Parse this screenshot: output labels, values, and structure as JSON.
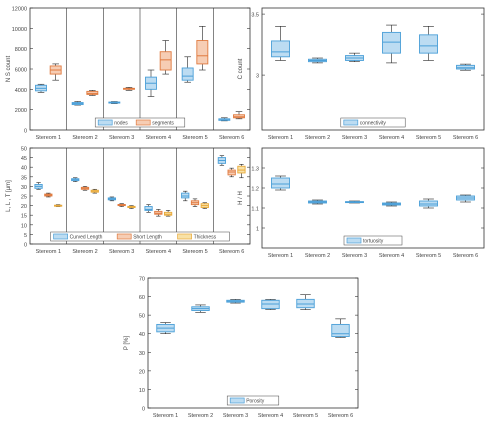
{
  "chart_data": [
    {
      "type": "boxplot",
      "ylabel": "N S count",
      "ylim": [
        0,
        12000
      ],
      "yticks": [
        0,
        2000,
        4000,
        6000,
        8000,
        10000,
        12000
      ],
      "ytick_labels": [
        "0",
        "2000",
        "4000",
        "6000",
        "8000",
        "10000",
        "12000"
      ],
      "categories": [
        "Stereom 1",
        "Stereom 2",
        "Stereom 3",
        "Stereom 4",
        "Stereom 5",
        "Stereom 6"
      ],
      "group_separators": true,
      "legend": {
        "placement": "bottom-center",
        "entries": [
          "nodes",
          "segments"
        ]
      },
      "series": [
        {
          "name": "nodes",
          "color": "#4a9fd8",
          "fill": "#bcdcf2",
          "values": [
            {
              "whislo": 3700,
              "q1": 3850,
              "med": 4100,
              "q3": 4400,
              "whishi": 4500
            },
            {
              "whislo": 2450,
              "q1": 2500,
              "med": 2600,
              "q3": 2700,
              "whishi": 2800
            },
            {
              "whislo": 2600,
              "q1": 2650,
              "med": 2700,
              "q3": 2750,
              "whishi": 2800
            },
            {
              "whislo": 3300,
              "q1": 4000,
              "med": 4600,
              "q3": 5200,
              "whishi": 5900
            },
            {
              "whislo": 4700,
              "q1": 4900,
              "med": 5300,
              "q3": 6100,
              "whishi": 7200
            },
            {
              "whislo": 900,
              "q1": 950,
              "med": 1000,
              "q3": 1100,
              "whishi": 1200
            }
          ]
        },
        {
          "name": "segments",
          "color": "#e07a3f",
          "fill": "#f6cdb4",
          "values": [
            {
              "whislo": 4900,
              "q1": 5500,
              "med": 5900,
              "q3": 6300,
              "whishi": 6500
            },
            {
              "whislo": 3400,
              "q1": 3500,
              "med": 3600,
              "q3": 3800,
              "whishi": 3900
            },
            {
              "whislo": 3900,
              "q1": 4000,
              "med": 4050,
              "q3": 4100,
              "whishi": 4200
            },
            {
              "whislo": 5500,
              "q1": 5900,
              "med": 6900,
              "q3": 7700,
              "whishi": 8800
            },
            {
              "whislo": 5900,
              "q1": 6500,
              "med": 7300,
              "q3": 8800,
              "whishi": 10200
            },
            {
              "whislo": 1100,
              "q1": 1200,
              "med": 1300,
              "q3": 1500,
              "whishi": 1800
            }
          ]
        }
      ]
    },
    {
      "type": "boxplot",
      "ylabel": "C count",
      "ylim": [
        2.55,
        3.55
      ],
      "yticks": [
        3.0,
        3.5
      ],
      "ytick_labels": [
        "3",
        "3.5"
      ],
      "categories": [
        "Stereom 1",
        "Stereom 2",
        "Stereom 3",
        "Stereom 4",
        "Stereom 5",
        "Stereom 6"
      ],
      "legend": {
        "placement": "bottom-center",
        "entries": [
          "connectivity"
        ]
      },
      "series": [
        {
          "name": "connectivity",
          "color": "#4a9fd8",
          "fill": "#bcdcf2",
          "values": [
            {
              "whislo": 3.12,
              "q1": 3.15,
              "med": 3.19,
              "q3": 3.28,
              "whishi": 3.4
            },
            {
              "whislo": 3.1,
              "q1": 3.11,
              "med": 3.12,
              "q3": 3.13,
              "whishi": 3.14
            },
            {
              "whislo": 3.11,
              "q1": 3.12,
              "med": 3.14,
              "q3": 3.16,
              "whishi": 3.18
            },
            {
              "whislo": 3.1,
              "q1": 3.18,
              "med": 3.27,
              "q3": 3.35,
              "whishi": 3.41
            },
            {
              "whislo": 3.12,
              "q1": 3.18,
              "med": 3.24,
              "q3": 3.33,
              "whishi": 3.4
            },
            {
              "whislo": 3.04,
              "q1": 3.05,
              "med": 3.06,
              "q3": 3.08,
              "whishi": 3.09
            }
          ]
        }
      ]
    },
    {
      "type": "boxplot",
      "ylabel": "L, L , T [μm]",
      "ylim": [
        0,
        50
      ],
      "yticks": [
        0,
        5,
        10,
        15,
        20,
        25,
        30,
        35,
        40,
        45,
        50
      ],
      "ytick_labels": [
        "0",
        "5",
        "10",
        "15",
        "20",
        "25",
        "30",
        "35",
        "40",
        "45",
        "50"
      ],
      "categories": [
        "Stereom 1",
        "Stereom 2",
        "Stereom 3",
        "Stereom 4",
        "Stereom 5",
        "Stereom 6"
      ],
      "group_separators": true,
      "legend": {
        "placement": "bottom-center",
        "entries": [
          "Curved Length",
          "Short Length",
          "Thickness"
        ]
      },
      "series": [
        {
          "name": "Curved Length",
          "color": "#4a9fd8",
          "fill": "#bcdcf2",
          "values": [
            {
              "whislo": 28.5,
              "q1": 29,
              "med": 30,
              "q3": 31,
              "whishi": 32
            },
            {
              "whislo": 32.5,
              "q1": 33,
              "med": 33.5,
              "q3": 34,
              "whishi": 34.5
            },
            {
              "whislo": 22.5,
              "q1": 23,
              "med": 23.5,
              "q3": 24,
              "whishi": 24.5
            },
            {
              "whislo": 16.5,
              "q1": 17.5,
              "med": 18,
              "q3": 19.5,
              "whishi": 20.5
            },
            {
              "whislo": 22.5,
              "q1": 24,
              "med": 25,
              "q3": 26.5,
              "whishi": 27.5
            },
            {
              "whislo": 41,
              "q1": 42,
              "med": 43.5,
              "q3": 45,
              "whishi": 46
            }
          ]
        },
        {
          "name": "Short Length",
          "color": "#e07a3f",
          "fill": "#f6cdb4",
          "values": [
            {
              "whislo": 24.5,
              "q1": 25,
              "med": 25.5,
              "q3": 26,
              "whishi": 26.5
            },
            {
              "whislo": 28,
              "q1": 28.5,
              "med": 29,
              "q3": 29.5,
              "whishi": 30
            },
            {
              "whislo": 19.5,
              "q1": 20,
              "med": 20.3,
              "q3": 20.6,
              "whishi": 21
            },
            {
              "whislo": 14.5,
              "q1": 15.5,
              "med": 16,
              "q3": 17,
              "whishi": 18
            },
            {
              "whislo": 19.5,
              "q1": 20.5,
              "med": 21.5,
              "q3": 22.5,
              "whishi": 23.5
            },
            {
              "whislo": 35,
              "q1": 36,
              "med": 37.5,
              "q3": 38.5,
              "whishi": 39.5
            }
          ]
        },
        {
          "name": "Thickness",
          "color": "#e8a93a",
          "fill": "#f8e1a6",
          "values": [
            {
              "whislo": 19.5,
              "q1": 19.8,
              "med": 20,
              "q3": 20.2,
              "whishi": 20.5
            },
            {
              "whislo": 26.5,
              "q1": 27,
              "med": 27.5,
              "q3": 28,
              "whishi": 28.5
            },
            {
              "whislo": 18.5,
              "q1": 19,
              "med": 19.3,
              "q3": 19.6,
              "whishi": 20
            },
            {
              "whislo": 14.5,
              "q1": 15,
              "med": 15.5,
              "q3": 16.5,
              "whishi": 17.5
            },
            {
              "whislo": 18.5,
              "q1": 19,
              "med": 20,
              "q3": 21,
              "whishi": 21.5
            },
            {
              "whislo": 34.5,
              "q1": 37,
              "med": 38.5,
              "q3": 40.5,
              "whishi": 41.5
            }
          ]
        }
      ]
    },
    {
      "type": "boxplot",
      "ylabel": "H / H",
      "ylim": [
        0.9,
        1.4
      ],
      "yticks": [
        1.0,
        1.1,
        1.2,
        1.3
      ],
      "ytick_labels": [
        "1",
        "1.1",
        "1.2",
        "1.3"
      ],
      "categories": [
        "Stereom 1",
        "Stereom 2",
        "Stereom 3",
        "Stereom 4",
        "Stereom 5",
        "Stereom 6"
      ],
      "legend": {
        "placement": "bottom-center",
        "entries": [
          "tortuosity"
        ]
      },
      "series": [
        {
          "name": "tortuosity",
          "color": "#4a9fd8",
          "fill": "#bcdcf2",
          "values": [
            {
              "whislo": 1.19,
              "q1": 1.2,
              "med": 1.22,
              "q3": 1.25,
              "whishi": 1.26
            },
            {
              "whislo": 1.12,
              "q1": 1.125,
              "med": 1.13,
              "q3": 1.135,
              "whishi": 1.14
            },
            {
              "whislo": 1.125,
              "q1": 1.128,
              "med": 1.13,
              "q3": 1.132,
              "whishi": 1.135
            },
            {
              "whislo": 1.11,
              "q1": 1.115,
              "med": 1.12,
              "q3": 1.125,
              "whishi": 1.13
            },
            {
              "whislo": 1.1,
              "q1": 1.11,
              "med": 1.12,
              "q3": 1.135,
              "whishi": 1.145
            },
            {
              "whislo": 1.13,
              "q1": 1.14,
              "med": 1.15,
              "q3": 1.16,
              "whishi": 1.165
            }
          ]
        }
      ]
    },
    {
      "type": "boxplot",
      "ylabel": "P [%]",
      "ylim": [
        0,
        70
      ],
      "yticks": [
        0,
        10,
        20,
        30,
        40,
        50,
        60,
        70
      ],
      "ytick_labels": [
        "0",
        "10",
        "20",
        "30",
        "40",
        "50",
        "60",
        "70"
      ],
      "categories": [
        "Stereom 1",
        "Stereom 2",
        "Stereom 3",
        "Stereom 4",
        "Stereom 5",
        "Stereom 6"
      ],
      "legend": {
        "placement": "bottom-center",
        "entries": [
          "Porosity"
        ]
      },
      "series": [
        {
          "name": "Porosity",
          "color": "#4a9fd8",
          "fill": "#bcdcf2",
          "values": [
            {
              "whislo": 40,
              "q1": 41,
              "med": 43,
              "q3": 45,
              "whishi": 46
            },
            {
              "whislo": 51.5,
              "q1": 52.5,
              "med": 53.5,
              "q3": 54.5,
              "whishi": 55.5
            },
            {
              "whislo": 56.5,
              "q1": 57,
              "med": 57.5,
              "q3": 58,
              "whishi": 58.5
            },
            {
              "whislo": 53,
              "q1": 53.5,
              "med": 56,
              "q3": 58,
              "whishi": 58.5
            },
            {
              "whislo": 53,
              "q1": 54,
              "med": 56,
              "q3": 58.5,
              "whishi": 61
            },
            {
              "whislo": 38,
              "q1": 38.5,
              "med": 40,
              "q3": 45,
              "whishi": 48
            }
          ]
        }
      ]
    }
  ]
}
